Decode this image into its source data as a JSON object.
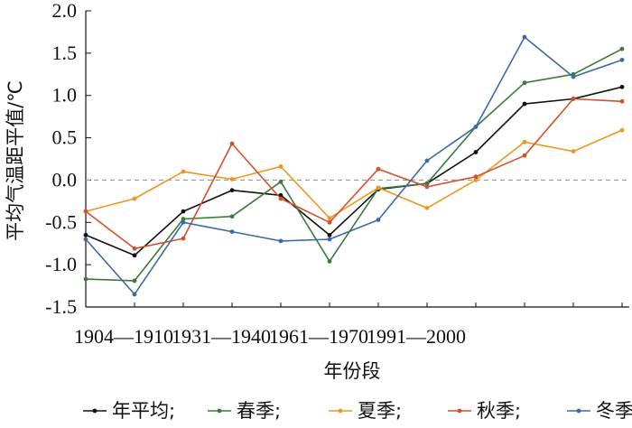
{
  "chart_data": {
    "type": "line",
    "xlabel": "年份段",
    "ylabel": "平均气温距平值/℃",
    "ylim": [
      -1.5,
      2.0
    ],
    "yticks": [
      "-1.5",
      "-1.0",
      "-0.5",
      "0.0",
      "0.5",
      "1.0",
      "1.5",
      "2.0"
    ],
    "xtick_labels": [
      "1904—1910",
      "1931—1940",
      "1961—1970",
      "1991—2000"
    ],
    "reference_line": 0.0,
    "grid": false,
    "legend_position": "bottom",
    "series": [
      {
        "name": "年平均;",
        "color": "#111111",
        "values": [
          -0.65,
          -0.89,
          -0.37,
          -0.12,
          -0.18,
          -0.65,
          -0.11,
          -0.04,
          0.33,
          0.9,
          0.96,
          1.1
        ]
      },
      {
        "name": "春季;",
        "color": "#3a7a3a",
        "values": [
          -1.17,
          -1.19,
          -0.46,
          -0.43,
          -0.02,
          -0.96,
          -0.1,
          -0.04,
          0.63,
          1.15,
          1.25,
          1.55
        ]
      },
      {
        "name": "夏季;",
        "color": "#f0961e",
        "values": [
          -0.37,
          -0.22,
          0.1,
          0.01,
          0.16,
          -0.45,
          -0.09,
          -0.33,
          0.0,
          0.45,
          0.34,
          0.59
        ]
      },
      {
        "name": "秋季;",
        "color": "#d4502a",
        "values": [
          -0.37,
          -0.81,
          -0.69,
          0.43,
          -0.22,
          -0.5,
          0.13,
          -0.08,
          0.04,
          0.29,
          0.96,
          0.93
        ]
      },
      {
        "name": "冬季",
        "color": "#3b6aa6",
        "values": [
          -0.7,
          -1.35,
          -0.5,
          -0.61,
          -0.72,
          -0.7,
          -0.47,
          0.23,
          0.63,
          1.69,
          1.22,
          1.42
        ]
      }
    ]
  }
}
